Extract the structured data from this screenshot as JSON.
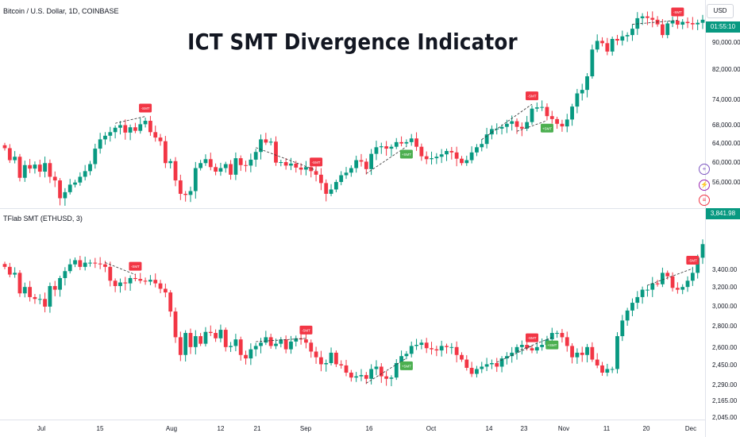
{
  "title_overlay": "ICT SMT Divergence Indicator",
  "symbol_header": "Bitcoin / U.S. Dollar, 1D, COINBASE",
  "indicator_header": "TFlab SMT (ETHUSD, 3)",
  "currency_button": "USD",
  "price_labels": {
    "top_last_price": "01:55:10",
    "bottom_last_price": "3,841.98"
  },
  "colors": {
    "up": "#089981",
    "down": "#f23645",
    "bull_signal": "#4caf50",
    "bear_signal": "#f23645",
    "divergence_line": "#333333"
  },
  "icons": [
    "plus-icon",
    "lightning-icon",
    "flag-icon"
  ],
  "signal_label_bear": "-SMT",
  "signal_label_bull": "+SMT",
  "chart_data": [
    {
      "type": "candlestick",
      "title": "Bitcoin / U.S. Dollar, 1D, COINBASE",
      "ylim": [
        50000,
        100000
      ],
      "y_scale": "log",
      "yticks": [
        "90,000.00",
        "82,000.00",
        "74,000.00",
        "68,000.00",
        "64,000.00",
        "60,000.00",
        "56,000.00"
      ],
      "closes": [
        63000,
        60500,
        61200,
        57000,
        59500,
        58800,
        59600,
        58200,
        59900,
        57200,
        56500,
        53200,
        54300,
        55700,
        56100,
        57200,
        58300,
        59700,
        62900,
        64900,
        65700,
        66500,
        67500,
        68100,
        66400,
        67600,
        66800,
        68300,
        69100,
        66500,
        65300,
        64500,
        59900,
        60300,
        56500,
        54000,
        53800,
        54500,
        58900,
        59900,
        60700,
        59100,
        58200,
        58900,
        59700,
        57600,
        60900,
        59500,
        59400,
        60600,
        62200,
        64900,
        64200,
        64400,
        60000,
        60100,
        59400,
        59800,
        59000,
        58600,
        59100,
        58300,
        57600,
        56000,
        54000,
        54800,
        56200,
        57500,
        58000,
        58900,
        60500,
        60200,
        58700,
        61800,
        63200,
        63400,
        62900,
        63300,
        64300,
        64000,
        64300,
        65100,
        63300,
        61300,
        60700,
        60900,
        61200,
        61700,
        62400,
        62100,
        60800,
        59900,
        60500,
        62100,
        63200,
        63900,
        66000,
        67200,
        67300,
        67700,
        68400,
        69000,
        67700,
        67300,
        68800,
        72000,
        72300,
        72400,
        70200,
        69500,
        68400,
        67800,
        69400,
        72500,
        75800,
        76700,
        80300,
        87900,
        90500,
        89800,
        87300,
        91100,
        90600,
        91900,
        92300,
        94300,
        97700,
        98300,
        97800,
        97200,
        95700,
        92300,
        96000,
        96900,
        95600,
        96500,
        96100,
        95700,
        96200,
        97200
      ]
    },
    {
      "type": "candlestick",
      "title": "TFlab SMT (ETHUSD, 3)",
      "ylim": [
        2045,
        3900
      ],
      "y_scale": "log",
      "yticks": [
        "3,400.00",
        "3,200.00",
        "3,000.00",
        "2,800.00",
        "2,600.00",
        "2,450.00",
        "2,290.00",
        "2,165.00",
        "2,045.00"
      ],
      "closes": [
        3440,
        3350,
        3370,
        3140,
        3210,
        3100,
        3080,
        3080,
        3000,
        3220,
        3180,
        3310,
        3390,
        3470,
        3520,
        3440,
        3490,
        3490,
        3480,
        3470,
        3440,
        3280,
        3220,
        3260,
        3250,
        3310,
        3300,
        3280,
        3270,
        3290,
        3250,
        3190,
        3150,
        2950,
        2700,
        2540,
        2740,
        2610,
        2710,
        2640,
        2750,
        2740,
        2690,
        2770,
        2610,
        2620,
        2680,
        2540,
        2510,
        2590,
        2620,
        2650,
        2700,
        2620,
        2640,
        2680,
        2590,
        2660,
        2690,
        2680,
        2650,
        2570,
        2520,
        2460,
        2470,
        2560,
        2460,
        2450,
        2390,
        2350,
        2360,
        2370,
        2340,
        2420,
        2440,
        2360,
        2340,
        2350,
        2470,
        2530,
        2550,
        2620,
        2630,
        2650,
        2600,
        2590,
        2580,
        2620,
        2610,
        2610,
        2540,
        2500,
        2430,
        2380,
        2420,
        2440,
        2460,
        2470,
        2440,
        2510,
        2530,
        2560,
        2610,
        2630,
        2600,
        2580,
        2610,
        2630,
        2680,
        2740,
        2740,
        2700,
        2620,
        2520,
        2560,
        2540,
        2610,
        2500,
        2450,
        2390,
        2420,
        2420,
        2710,
        2860,
        2960,
        3040,
        3100,
        3180,
        3180,
        3250,
        3240,
        3370,
        3330,
        3200,
        3180,
        3210,
        3280,
        3370,
        3550,
        3720,
        3650,
        3660,
        3640,
        3590,
        3590,
        3700,
        3840
      ]
    }
  ],
  "x_axis_labels": [
    "Jul",
    "15",
    "Aug",
    "12",
    "21",
    "Sep",
    "16",
    "Oct",
    "14",
    "23",
    "Nov",
    "11",
    "20",
    "Dec"
  ]
}
